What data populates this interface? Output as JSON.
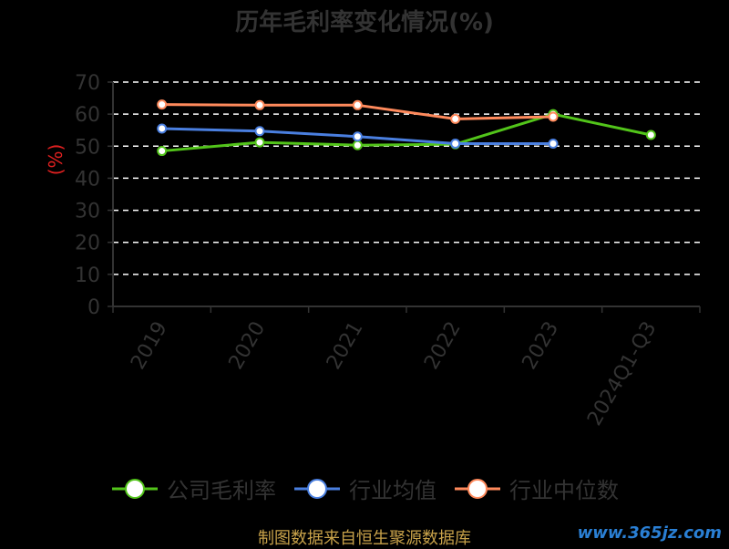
{
  "title": "历年毛利率变化情况(%)",
  "source": "制图数据来自恒生聚源数据库",
  "watermark": "www.365jz.com",
  "colors": {
    "background": "#000000",
    "text": "#333333",
    "grid": "#ffffff",
    "ylabel": "#e02020"
  },
  "chart_data": {
    "type": "line",
    "title": "历年毛利率变化情况(%)",
    "xlabel": "",
    "ylabel": "(%)",
    "ylim": [
      0,
      70
    ],
    "yticks": [
      0,
      10,
      20,
      30,
      40,
      50,
      60,
      70
    ],
    "grid": true,
    "legend_position": "bottom",
    "categories": [
      "2019",
      "2020",
      "2021",
      "2022",
      "2023",
      "2024Q1-Q3"
    ],
    "series": [
      {
        "name": "公司毛利率",
        "color": "#52c41a",
        "values": [
          48.5,
          51.2,
          50.3,
          50.6,
          60.0,
          53.5
        ]
      },
      {
        "name": "行业均值",
        "color": "#4a7fe0",
        "values": [
          55.5,
          54.7,
          53.0,
          50.8,
          50.8,
          null
        ]
      },
      {
        "name": "行业中位数",
        "color": "#ff8a5c",
        "values": [
          63.0,
          62.8,
          62.8,
          58.5,
          59.2,
          null
        ]
      }
    ]
  }
}
